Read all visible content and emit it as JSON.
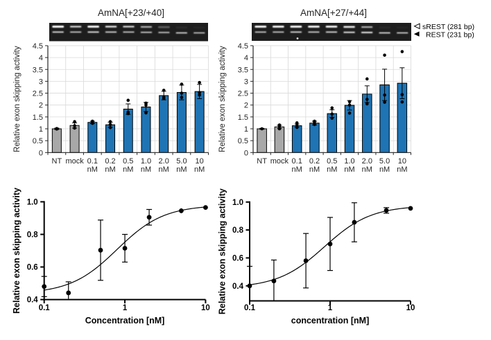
{
  "colors": {
    "bar_blue": "#1f74b4",
    "bar_gray": "#a8a8a8",
    "bar_edge": "#000000",
    "grid": "#d9d9d9",
    "axis_dark": "#262626",
    "prism_black": "#000000",
    "gel_background": "#1d1d1d",
    "gel_band": "#f5f5f5"
  },
  "legend": {
    "entries": [
      {
        "marker": "open-left-triangle-icon",
        "label": "sREST (281 bp)"
      },
      {
        "marker": "filled-left-triangle-icon",
        "label": "REST (231 bp)"
      }
    ]
  },
  "chart_data": [
    {
      "id": "bar-left",
      "type": "bar",
      "title": "AmNA[+23/+40]",
      "ylabel": "Relative exon skipping activity",
      "ylim": [
        0,
        4.5
      ],
      "ytick_step": 0.5,
      "grid": true,
      "categories": [
        {
          "line1": "NT",
          "line2": ""
        },
        {
          "line1": "mock",
          "line2": ""
        },
        {
          "line1": "0.1",
          "line2": "nM"
        },
        {
          "line1": "0.2",
          "line2": "nM"
        },
        {
          "line1": "0.5",
          "line2": "nM"
        },
        {
          "line1": "1.0",
          "line2": "nM"
        },
        {
          "line1": "2.0",
          "line2": "nM"
        },
        {
          "line1": "5.0",
          "line2": "nM"
        },
        {
          "line1": "10",
          "line2": "nM"
        }
      ],
      "values": [
        1.0,
        1.14,
        1.27,
        1.17,
        1.83,
        1.92,
        2.4,
        2.53,
        2.57
      ],
      "errors": [
        0.03,
        0.11,
        0.05,
        0.11,
        0.22,
        0.19,
        0.18,
        0.31,
        0.3
      ],
      "dots": [
        [
          0.99,
          1.01
        ],
        [
          1.03,
          1.13,
          1.3
        ],
        [
          1.23,
          1.27,
          1.32
        ],
        [
          1.05,
          1.18,
          1.3
        ],
        [
          1.64,
          1.7,
          2.2
        ],
        [
          1.67,
          2.0,
          2.08
        ],
        [
          2.28,
          2.33,
          2.62
        ],
        [
          2.32,
          2.5,
          2.88
        ],
        [
          2.42,
          2.52,
          2.95
        ]
      ],
      "gray_bars": [
        0,
        1
      ],
      "gel_lanes": [
        {
          "top": 1.0,
          "bottom": 0.52,
          "dy": 0
        },
        {
          "top": 0.55,
          "bottom": 0.44,
          "dy": 0
        },
        {
          "top": 0.9,
          "bottom": 0.55,
          "dy": 0
        },
        {
          "top": 0.62,
          "bottom": 0.48,
          "dy": 0
        },
        {
          "top": 0.55,
          "bottom": 0.44,
          "dy": 0
        },
        {
          "top": 0.42,
          "bottom": 0.44,
          "dy": 0.4
        },
        {
          "top": 0.26,
          "bottom": 0.42,
          "dy": 0.6
        },
        {
          "top": 0.05,
          "bottom": 0.48,
          "dy": 1.2
        },
        {
          "top": 0.03,
          "bottom": 0.42,
          "dy": 1.2
        }
      ]
    },
    {
      "id": "bar-right",
      "type": "bar",
      "title": "AmNA[+27/+44]",
      "ylabel": "Relative exon skipping activity",
      "ylim": [
        0,
        4.5
      ],
      "ytick_step": 0.5,
      "grid": true,
      "categories": [
        {
          "line1": "NT",
          "line2": ""
        },
        {
          "line1": "mock",
          "line2": ""
        },
        {
          "line1": "0.1",
          "line2": "nM"
        },
        {
          "line1": "0.2",
          "line2": "nM"
        },
        {
          "line1": "0.5",
          "line2": "nM"
        },
        {
          "line1": "1.0",
          "line2": "nM"
        },
        {
          "line1": "2.0",
          "line2": "nM"
        },
        {
          "line1": "5.0",
          "line2": "nM"
        },
        {
          "line1": "10",
          "line2": "nM"
        }
      ],
      "values": [
        1.0,
        1.08,
        1.13,
        1.24,
        1.64,
        1.99,
        2.46,
        2.85,
        2.92
      ],
      "errors": [
        0.02,
        0.07,
        0.07,
        0.08,
        0.16,
        0.2,
        0.35,
        0.66,
        0.65
      ],
      "dots": [
        [
          1.0
        ],
        [
          1.0,
          1.09,
          1.16
        ],
        [
          1.06,
          1.13,
          1.25
        ],
        [
          1.18,
          1.26,
          1.32
        ],
        [
          1.45,
          1.62,
          1.88
        ],
        [
          1.66,
          2.0,
          2.14
        ],
        [
          2.05,
          2.24,
          3.1
        ],
        [
          2.12,
          2.42,
          4.1
        ],
        [
          2.13,
          2.44,
          4.25
        ]
      ],
      "gray_bars": [
        0,
        1
      ],
      "gel_lanes": [
        {
          "top": 0.9,
          "bottom": 0.45,
          "dy": 0
        },
        {
          "top": 0.85,
          "bottom": 0.44,
          "dy": 0
        },
        {
          "top": 0.9,
          "bottom": 0.5,
          "dy": 0
        },
        {
          "top": 0.85,
          "bottom": 0.46,
          "dy": 0
        },
        {
          "top": 0.82,
          "bottom": 0.5,
          "dy": 0
        },
        {
          "top": 0.72,
          "bottom": 0.56,
          "dy": 0.4
        },
        {
          "top": 0.4,
          "bottom": 0.6,
          "dy": 0.6
        },
        {
          "top": 0.04,
          "bottom": 0.5,
          "dy": 1.2
        },
        {
          "top": 0.03,
          "bottom": 0.46,
          "dy": 1.2
        }
      ]
    },
    {
      "id": "dose-left",
      "type": "scatter",
      "xlabel": "Concentration [nM]",
      "ylabel": "Relative exon skipping activity",
      "xscale": "log",
      "xlim": [
        0.1,
        10
      ],
      "ylim": [
        0.4,
        1.0
      ],
      "xticks": [
        "0.1",
        "1",
        "10"
      ],
      "yticks": [
        "0.4",
        "0.6",
        "0.8",
        "1.0"
      ],
      "x": [
        0.1,
        0.2,
        0.5,
        1,
        2,
        5,
        10
      ],
      "y": [
        0.48,
        0.441,
        0.703,
        0.715,
        0.905,
        0.945,
        0.965
      ],
      "err": [
        0.062,
        0.068,
        0.185,
        0.085,
        0.048,
        0.015,
        0.012
      ],
      "fit": {
        "bottom": 0.435,
        "top": 0.98,
        "ec50": 0.8,
        "hill": 1.5
      }
    },
    {
      "id": "dose-right",
      "type": "scatter",
      "xlabel": "concentration [nM]",
      "ylabel": "Relative exon skipping activity",
      "xscale": "log",
      "xlim": [
        0.1,
        10
      ],
      "ylim": [
        0.4,
        1.0
      ],
      "xticks": [
        "0.1",
        "1",
        "10"
      ],
      "yticks": [
        "0.4",
        "0.6",
        "0.8",
        "1.0"
      ],
      "x": [
        0.1,
        0.2,
        0.5,
        1,
        2,
        5,
        10
      ],
      "y": [
        0.4,
        0.435,
        0.58,
        0.7,
        0.855,
        0.94,
        0.955
      ],
      "err": [
        0.14,
        0.15,
        0.195,
        0.19,
        0.14,
        0.02,
        0.012
      ],
      "fit": {
        "bottom": 0.385,
        "top": 0.975,
        "ec50": 0.85,
        "hill": 1.5
      }
    }
  ]
}
